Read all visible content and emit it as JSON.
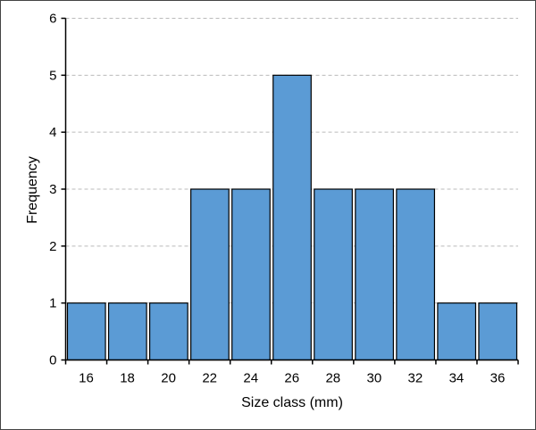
{
  "chart_data": {
    "type": "bar",
    "title": "",
    "xlabel": "Size class (mm)",
    "ylabel": "Frequency",
    "categories": [
      "16",
      "18",
      "20",
      "22",
      "24",
      "26",
      "28",
      "30",
      "32",
      "34",
      "36"
    ],
    "values": [
      1,
      1,
      1,
      3,
      3,
      5,
      3,
      3,
      3,
      1,
      1
    ],
    "ylim": [
      0,
      6
    ],
    "yticks": [
      0,
      1,
      2,
      3,
      4,
      5,
      6
    ],
    "grid": "horizontal dashed",
    "legend": "none",
    "bar_color": "#5b9bd5",
    "bar_edge_color": "#000000"
  }
}
